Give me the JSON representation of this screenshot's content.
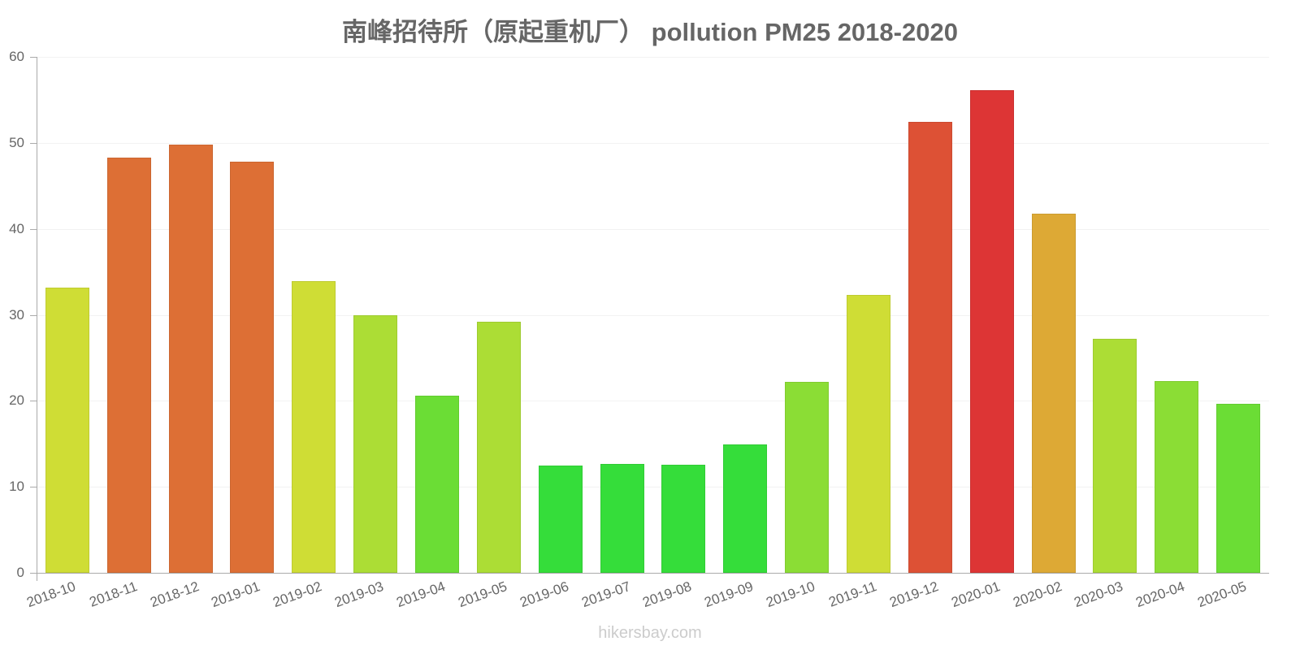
{
  "chart_data": {
    "type": "bar",
    "title": "南峰招待所（原起重机厂） pollution PM25 2018-2020",
    "xlabel": "",
    "ylabel": "",
    "ylim": [
      0,
      60
    ],
    "yticks": [
      0,
      10,
      20,
      30,
      40,
      50,
      60
    ],
    "grid": true,
    "legend": null,
    "categories": [
      "2018-10",
      "2018-11",
      "2018-12",
      "2019-01",
      "2019-02",
      "2019-03",
      "2019-04",
      "2019-05",
      "2019-06",
      "2019-07",
      "2019-08",
      "2019-09",
      "2019-10",
      "2019-11",
      "2019-12",
      "2020-01",
      "2020-02",
      "2020-03",
      "2020-04",
      "2020-05"
    ],
    "values": [
      33.2,
      48.3,
      49.8,
      47.8,
      33.9,
      30.0,
      20.6,
      29.2,
      12.5,
      12.7,
      12.6,
      14.9,
      22.2,
      32.3,
      52.4,
      56.1,
      41.8,
      27.2,
      22.3,
      19.7
    ],
    "colors": [
      "#cfdd35",
      "#dd6f35",
      "#dd6f35",
      "#dd6f35",
      "#cfdd35",
      "#acdd35",
      "#6bdd35",
      "#acdd35",
      "#35dd3a",
      "#35dd3a",
      "#35dd3a",
      "#35dd3a",
      "#8bdd35",
      "#cfdd35",
      "#dd5135",
      "#dd3535",
      "#dda935",
      "#acdd35",
      "#8bdd35",
      "#6bdd35"
    ]
  },
  "watermark": "hikersbay.com"
}
